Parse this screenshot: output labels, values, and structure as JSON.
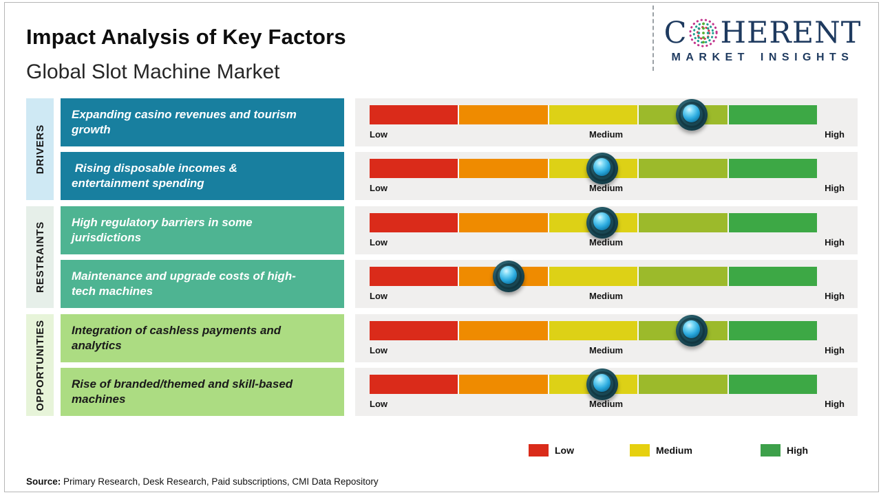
{
  "page": {
    "title": "Impact Analysis of Key Factors",
    "subtitle": "Global Slot Machine Market",
    "source_label": "Source:",
    "source_text": " Primary Research, Desk Research, Paid subscriptions, CMI Data Repository"
  },
  "logo": {
    "name_c": "C",
    "name_rest": "HERENT",
    "tagline": "MARKET INSIGHTS",
    "globe_icon": "dotted-globe-icon",
    "navy": "#1e3a5f"
  },
  "categories": [
    {
      "label": "DRIVERS",
      "strip_color": "#cfe9f4",
      "box_color": "#187f9f",
      "text_color": "#ffffff",
      "row_indices": [
        0,
        1
      ]
    },
    {
      "label": "RESTRAINTS",
      "strip_color": "#e6efe9",
      "box_color": "#4eb492",
      "text_color": "#ffffff",
      "row_indices": [
        2,
        3
      ]
    },
    {
      "label": "OPPORTUNITIES",
      "strip_color": "#e7f4d9",
      "box_color": "#acdc82",
      "text_color": "#1a1a1a",
      "row_indices": [
        4,
        5
      ]
    }
  ],
  "chart_data": {
    "type": "bar",
    "variant": "impact-slider-scale",
    "title": "Impact Analysis of Key Factors",
    "subtitle": "Global Slot Machine Market",
    "scale_labels": [
      "Low",
      "Medium",
      "High"
    ],
    "scale_range_pct": [
      0,
      100
    ],
    "segment_colors": [
      "#da2b1a",
      "#ef8b00",
      "#ddd116",
      "#9cba2b",
      "#3da845"
    ],
    "rows": [
      {
        "group": "DRIVERS",
        "factor": "Expanding casino revenues and tourism growth",
        "impact_pct": 72,
        "impact_level": "Medium-High"
      },
      {
        "group": "DRIVERS",
        "factor": " Rising disposable incomes & entertainment spending",
        "impact_pct": 52,
        "impact_level": "Medium"
      },
      {
        "group": "RESTRAINTS",
        "factor": "High regulatory barriers in some jurisdictions",
        "impact_pct": 52,
        "impact_level": "Medium"
      },
      {
        "group": "RESTRAINTS",
        "factor": "Maintenance and upgrade costs of high-tech machines",
        "impact_pct": 31,
        "impact_level": "Low-Medium"
      },
      {
        "group": "OPPORTUNITIES",
        "factor": "Integration of cashless payments and analytics",
        "impact_pct": 72,
        "impact_level": "Medium-High"
      },
      {
        "group": "OPPORTUNITIES",
        "factor": "Rise of branded/themed and skill-based machines",
        "impact_pct": 52,
        "impact_level": "Medium"
      }
    ],
    "legend": [
      {
        "label": "Low",
        "color": "#da2b1a"
      },
      {
        "label": "Medium",
        "color": "#e6d00f"
      },
      {
        "label": "High",
        "color": "#3da04a"
      }
    ],
    "legend_position": "bottom-right",
    "grid": false
  }
}
